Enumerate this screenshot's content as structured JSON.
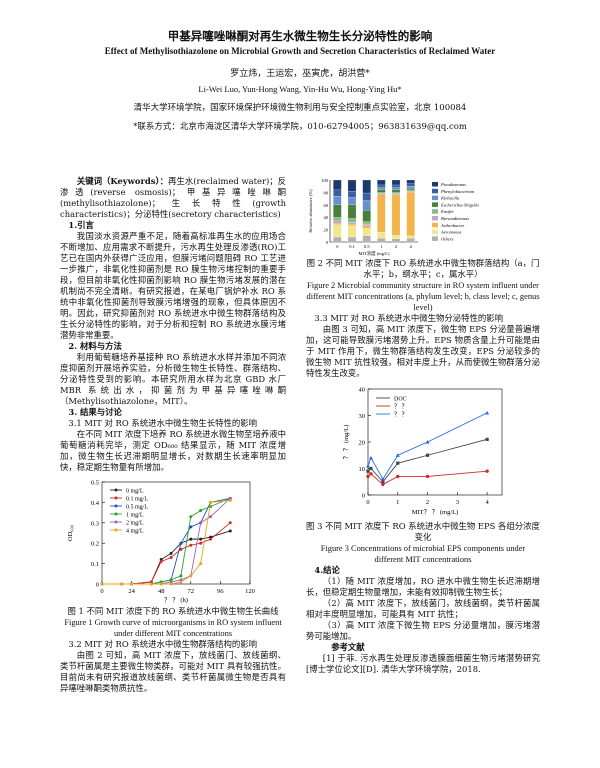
{
  "header": {
    "title_cn": "甲基异噻唑啉酮对再生水微生物生长分泌特性的影响",
    "title_en": "Effect of Methylisothiazolone on Microbial Growth and Secretion Characteristics of Reclaimed Water",
    "authors_cn": "罗立炜，王运宏，巫寅虎，胡洪营*",
    "authors_en": "Li-Wei Luo, Yun-Hong Wang, Yin-Hu Wu, Hong-Ying Hu*",
    "affiliation": "清华大学环境学院，国家环境保护环境微生物利用与安全控制重点实验室，北京  100084",
    "contact": "*联系方式：北京市海淀区清华大学环境学院，010-62794005；963831639@qq.com"
  },
  "left": {
    "keywords_label": "关键词（Keywords）：",
    "keywords_text": "再生水(reclaimed water)；反渗透(reverse osmosis)；甲基异噻唑啉酮(methylisothiazolone)；生长特性(growth characteristics)；分泌特性(secretory characteristics)",
    "sec1": "1.引言",
    "p1": "我国淡水资源严重不足，随着高标准再生水的应用场合不断增加、应用需求不断提升，污水再生处理反渗透(RO)工艺已在国内外获得广泛应用，但膜污堵问题阻碍 RO 工艺进一步推广，非氧化性抑菌剂是 RO 膜生物污堵控制的重要手段，但目前非氧化性抑菌剂影响 RO 膜生物污堵发展的潜在机制尚不完全清晰。有研究报道，在某电厂锅炉补水 RO 系统中非氧化性抑菌剂导致膜污堵增强的现象，但具体原因不明。因此，研究抑菌剂对 RO 系统进水中微生物群落结构及生长分泌特性的影响，对于分析和控制 RO 系统进水膜污堵潜势非常重要。",
    "sec2": "2. 材料与方法",
    "p2": "利用葡萄糖培养基接种 RO 系统进水水样并添加不同浓度抑菌剂开展培养实验，分析微生物生长特性、群落结构、分泌特性受到的影响。本研究所用水样为北京 GBD 水厂 MBR 系统出水，抑菌剂为甲基异噻唑啉酮（Methylisothiazolone，MIT）。",
    "sec3": "3. 结果与讨论",
    "p3_heading": "3.1 MIT 对 RO 系统进水中微生物生长特性的影响",
    "p3": "在不同 MIT 浓度下培养 RO 系统进水微生物至培养液中葡萄糖消耗完毕，测定 OD₆₀₀ 结果显示，随 MIT 浓度增加，微生物生长迟滞期明显增长，对数期生长速率明显加快，稳定期生物量有所增加。",
    "fig1_caption_cn": "图 1  不同 MIT 浓度下的 RO 系统进水中微生物生长曲线",
    "fig1_caption_en": "Figure 1 Growth curve of microorganisms in RO system influent under different MIT concentrations",
    "p4_heading": "3.2 MIT 对 RO 系统进水中微生物群落结构的影响",
    "p4": "由图 2 可知，高 MIT 浓度下，放线菌门、放线菌纲、类节杆菌属是主要微生物类群，可能对 MIT 具有较强抗性。目前尚未有研究报道放线菌纲、类节杆菌属微生物是否具有异噻唑啉酮类物质抗性。"
  },
  "right": {
    "fig2_caption_cn": "图 2  不同 MIT 浓度下 RO 系统进水中微生物群落结构（a，门水平；b，纲水平；c，属水平）",
    "fig2_caption_en": "Figure 2 Microbial community structure in RO system influent under different MIT concentrations (a, phylum level; b, class level; c, genus level)",
    "p5_heading": "3.3 MIT 对 RO 系统进水中微生物分泌特性的影响",
    "p5": "由图 3 可知，高 MIT 浓度下，微生物 EPS 分泌量普遍增加，这可能导致膜污堵潜势上升。EPS 物质含量上升可能是由于 MIT 作用下，微生物群落结构发生改变，EPS 分泌较多的微生物 MIT 抗性较强，相对丰度上升，从而使微生物群落分泌特性发生改变。",
    "fig3_caption_cn": "图 3  不同 MIT 浓度下 RO 系统进水中微生物 EPS 各组分浓度变化",
    "fig3_caption_en": "Figure 3 Concentrations of microbial EPS components under different MIT concentrations",
    "sec4": "4.结论",
    "c1": "（1）随 MIT 浓度增加，RO 进水中微生物生长迟滞期增长，但稳定期生物量增加，未能有效抑制微生物生长；",
    "c2": "（2）高 MIT 浓度下，放线菌门，放线菌纲，类节杆菌属相对丰度明显增加，可能具有 MIT 抗性；",
    "c3": "（3）高 MIT 浓度下微生物 EPS 分泌量增加，膜污堵潜势可能增加。",
    "ref_title": "参考文献",
    "ref1": "[1] 于菲. 污水再生处理反渗透膜面细菌生物污堵潜势研究[博士学位论文][D]. 清华大学环境学院，2018."
  },
  "chart_data": [
    {
      "type": "line",
      "ylabel": "OD₆₀₀",
      "xlabel": "？ ？ (h)",
      "xlim": [
        0,
        120
      ],
      "ylim": [
        0,
        0.5
      ],
      "xticks": [
        "0",
        "24",
        "48",
        "72",
        "96",
        "120"
      ],
      "yticks": [
        "0",
        "0.1",
        "0.2",
        "0.3",
        "0.4",
        "0.5"
      ],
      "legend_position": "top-left",
      "series": [
        {
          "name": "0    mg/L",
          "color": "#222222",
          "x": [
            0,
            16,
            24,
            40,
            48,
            56,
            64,
            72,
            80,
            88,
            104
          ],
          "y": [
            0.0,
            0.0,
            0.0,
            0.01,
            0.12,
            0.15,
            0.2,
            0.22,
            0.22,
            0.23,
            0.26
          ]
        },
        {
          "name": "0.1  mg/L",
          "color": "#d62728",
          "x": [
            0,
            16,
            24,
            40,
            48,
            56,
            64,
            72,
            80,
            88,
            104
          ],
          "y": [
            0.0,
            0.0,
            0.0,
            0.01,
            0.11,
            0.13,
            0.17,
            0.19,
            0.2,
            0.22,
            0.3
          ]
        },
        {
          "name": "0.5  mg/L",
          "color": "#1f4fbf",
          "x": [
            0,
            16,
            24,
            40,
            48,
            56,
            64,
            72,
            80,
            88,
            104
          ],
          "y": [
            0.0,
            0.0,
            0.0,
            0.0,
            0.01,
            0.02,
            0.2,
            0.28,
            0.3,
            0.4,
            0.42
          ]
        },
        {
          "name": "1    mg/L",
          "color": "#2ca02c",
          "x": [
            0,
            16,
            24,
            40,
            48,
            56,
            64,
            72,
            80,
            88,
            104
          ],
          "y": [
            0.0,
            0.0,
            0.0,
            0.0,
            0.01,
            0.02,
            0.04,
            0.33,
            0.36,
            0.38,
            0.42
          ]
        },
        {
          "name": "2    mg/L",
          "color": "#9467bd",
          "x": [
            0,
            16,
            24,
            40,
            48,
            56,
            64,
            72,
            80,
            88,
            104
          ],
          "y": [
            0.0,
            0.0,
            0.0,
            0.0,
            0.0,
            0.01,
            0.02,
            0.04,
            0.3,
            0.33,
            0.42
          ]
        },
        {
          "name": "4    mg/L",
          "color": "#e8a317",
          "x": [
            0,
            16,
            24,
            40,
            48,
            56,
            64,
            72,
            80,
            88,
            104
          ],
          "y": [
            0.0,
            0.0,
            0.0,
            0.0,
            0.0,
            0.0,
            0.01,
            0.04,
            0.1,
            0.4,
            0.41
          ]
        }
      ]
    },
    {
      "type": "bar",
      "ylabel": "Relative abundance (%)",
      "xlabel": "MIT浓度 (mg/L)",
      "ylim": [
        0,
        100
      ],
      "yticks": [
        "0",
        "20",
        "40",
        "60",
        "80",
        "100"
      ],
      "categories": [
        "0",
        "0.1",
        "0.5",
        "1",
        "2",
        "4"
      ],
      "legend_position": "right",
      "series": [
        {
          "name": "Others",
          "color": "#b0b0b0",
          "values": [
            8,
            8,
            10,
            6,
            5,
            6
          ]
        },
        {
          "name": "Aeromonas",
          "color": "#f0e68c",
          "values": [
            20,
            18,
            12,
            10,
            6,
            4
          ]
        },
        {
          "name": "Arthrobacter",
          "color": "#f3b44c",
          "values": [
            2,
            3,
            4,
            60,
            65,
            70
          ]
        },
        {
          "name": "Brevundimonas",
          "color": "#c8a2c8",
          "values": [
            4,
            3,
            3,
            2,
            2,
            2
          ]
        },
        {
          "name": "Ensifer",
          "color": "#7fbf7f",
          "values": [
            6,
            6,
            4,
            2,
            2,
            2
          ]
        },
        {
          "name": "Escherichia-Shigella",
          "color": "#4a7f3a",
          "values": [
            20,
            22,
            18,
            4,
            4,
            3
          ]
        },
        {
          "name": "Klebsiella",
          "color": "#6a8fcf",
          "values": [
            14,
            12,
            16,
            4,
            4,
            3
          ]
        },
        {
          "name": "Phenylobacterium",
          "color": "#3a5f9f",
          "values": [
            10,
            10,
            12,
            4,
            4,
            4
          ]
        },
        {
          "name": "Pseudomonas",
          "color": "#1a3a6f",
          "values": [
            16,
            18,
            21,
            8,
            8,
            6
          ]
        }
      ]
    },
    {
      "type": "line",
      "ylabel": "？ ？ (mg/L)",
      "xlabel": "MIT？ ？ (mg/L)",
      "xlim": [
        0,
        4.5
      ],
      "ylim": [
        0,
        40
      ],
      "xticks": [
        "0",
        "1",
        "2",
        "3",
        "4"
      ],
      "yticks": [
        "0",
        "10",
        "20",
        "30",
        "40"
      ],
      "legend_position": "top-left",
      "series": [
        {
          "name": "DOC",
          "color": "#444444",
          "x": [
            0,
            0.1,
            0.5,
            1,
            2,
            4
          ],
          "y": [
            9,
            10,
            5,
            12,
            15,
            21
          ]
        },
        {
          "name": "？ ？",
          "color": "#d62728",
          "x": [
            0,
            0.1,
            0.5,
            1,
            2,
            4
          ],
          "y": [
            7,
            8,
            4,
            7,
            7,
            9
          ]
        },
        {
          "name": "？ ？",
          "color": "#1f6fdf",
          "x": [
            0,
            0.1,
            0.5,
            1,
            2,
            4
          ],
          "y": [
            11,
            14,
            6,
            15,
            20,
            31
          ]
        }
      ]
    }
  ]
}
